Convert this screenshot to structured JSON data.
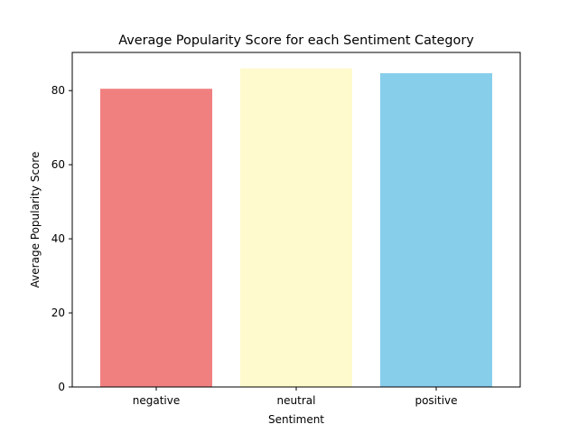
{
  "chart_data": {
    "type": "bar",
    "title": "Average Popularity Score for each Sentiment Category",
    "xlabel": "Sentiment",
    "ylabel": "Average Popularity Score",
    "categories": [
      "negative",
      "neutral",
      "positive"
    ],
    "values": [
      80.5,
      86.0,
      84.7
    ],
    "colors": [
      "#f08080",
      "#fffacd",
      "#87ceeb"
    ],
    "ylim": [
      0,
      90.3
    ],
    "yticks": [
      0,
      20,
      40,
      60,
      80
    ],
    "grid": false
  }
}
